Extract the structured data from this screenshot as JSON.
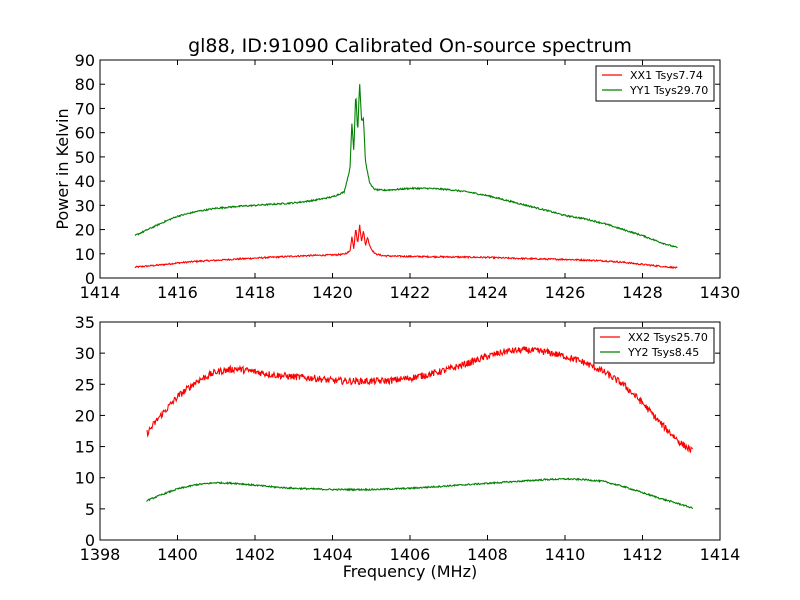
{
  "chart_data": [
    {
      "type": "line",
      "title": "gl88, ID:91090 Calibrated On-source spectrum",
      "xlabel": "",
      "ylabel": "Power in Kelvin",
      "xlim": [
        1414,
        1430
      ],
      "ylim": [
        0,
        90
      ],
      "xticks": [
        1414,
        1416,
        1418,
        1420,
        1422,
        1424,
        1426,
        1428,
        1430
      ],
      "yticks": [
        0,
        10,
        20,
        30,
        40,
        50,
        60,
        70,
        80,
        90
      ],
      "grid": false,
      "legend_position": "top-right",
      "series": [
        {
          "name": "XX1 Tsys7.74",
          "color": "#ff0000",
          "x": [
            1414.9,
            1415.5,
            1416.0,
            1416.5,
            1417.0,
            1417.5,
            1418.0,
            1418.5,
            1419.0,
            1419.5,
            1420.0,
            1420.3,
            1420.45,
            1420.5,
            1420.55,
            1420.6,
            1420.65,
            1420.7,
            1420.75,
            1420.8,
            1420.85,
            1420.9,
            1420.95,
            1421.0,
            1421.1,
            1421.3,
            1421.6,
            1422.0,
            1422.5,
            1423.0,
            1423.5,
            1424.0,
            1424.5,
            1425.0,
            1425.5,
            1426.0,
            1426.5,
            1427.0,
            1427.5,
            1428.0,
            1428.5,
            1428.9
          ],
          "y": [
            4.5,
            5.3,
            6.2,
            6.9,
            7.3,
            7.8,
            8.2,
            8.6,
            9.0,
            9.3,
            9.5,
            9.8,
            11,
            17,
            12,
            21,
            14,
            22,
            15,
            20,
            13,
            17,
            14,
            12,
            10,
            9.2,
            9.0,
            8.9,
            8.8,
            8.7,
            8.6,
            8.5,
            8.2,
            8.0,
            7.8,
            7.7,
            7.4,
            7.1,
            6.5,
            5.6,
            4.8,
            4.2
          ]
        },
        {
          "name": "YY1 Tsys29.70",
          "color": "#008000",
          "x": [
            1414.9,
            1415.3,
            1415.7,
            1416.0,
            1416.5,
            1417.0,
            1417.5,
            1418.0,
            1418.5,
            1419.0,
            1419.5,
            1420.0,
            1420.3,
            1420.45,
            1420.5,
            1420.55,
            1420.6,
            1420.65,
            1420.7,
            1420.75,
            1420.8,
            1420.85,
            1420.9,
            1420.95,
            1421.0,
            1421.1,
            1421.3,
            1421.6,
            1422.0,
            1422.5,
            1423.0,
            1423.5,
            1424.0,
            1424.5,
            1425.0,
            1425.5,
            1426.0,
            1426.5,
            1427.0,
            1427.5,
            1428.0,
            1428.5,
            1428.9
          ],
          "y": [
            17.5,
            20.5,
            23.5,
            25.5,
            27.5,
            28.8,
            29.5,
            30.0,
            30.5,
            31.0,
            32.0,
            33.5,
            35.5,
            45,
            64,
            52,
            77,
            60,
            81,
            65,
            66,
            48,
            44,
            40,
            38,
            36.5,
            36.2,
            36.5,
            37.0,
            37.0,
            36.5,
            35.5,
            34.0,
            32.0,
            30.0,
            28.0,
            25.8,
            24.5,
            22.5,
            20.0,
            17.5,
            14.5,
            12.5
          ]
        }
      ]
    },
    {
      "type": "line",
      "title": "",
      "xlabel": "Frequency (MHz)",
      "ylabel": "",
      "xlim": [
        1398,
        1414
      ],
      "ylim": [
        0,
        35
      ],
      "xticks": [
        1398,
        1400,
        1402,
        1404,
        1406,
        1408,
        1410,
        1412,
        1414
      ],
      "yticks": [
        0,
        5,
        10,
        15,
        20,
        25,
        30,
        35
      ],
      "grid": false,
      "legend_position": "top-right",
      "series": [
        {
          "name": "XX2 Tsys25.70",
          "color": "#ff0000",
          "x": [
            1399.2,
            1399.5,
            1400.0,
            1400.5,
            1401.0,
            1401.5,
            1402.0,
            1402.5,
            1403.0,
            1403.5,
            1404.0,
            1404.5,
            1405.0,
            1405.5,
            1406.0,
            1406.5,
            1407.0,
            1407.5,
            1408.0,
            1408.5,
            1409.0,
            1409.5,
            1410.0,
            1410.5,
            1411.0,
            1411.5,
            1412.0,
            1412.5,
            1413.0,
            1413.3
          ],
          "y": [
            17.0,
            19.5,
            23.0,
            25.5,
            27.0,
            27.5,
            27.0,
            26.5,
            26.2,
            26.0,
            25.6,
            25.5,
            25.5,
            25.6,
            26.0,
            26.6,
            27.4,
            28.4,
            29.5,
            30.3,
            30.5,
            30.2,
            29.5,
            28.5,
            27.0,
            25.0,
            22.0,
            18.5,
            15.5,
            14.2
          ]
        },
        {
          "name": "YY2 Tsys8.45",
          "color": "#008000",
          "x": [
            1399.2,
            1399.6,
            1400.0,
            1400.5,
            1401.0,
            1401.5,
            1402.0,
            1402.5,
            1403.0,
            1403.5,
            1404.0,
            1404.5,
            1405.0,
            1405.5,
            1406.0,
            1406.5,
            1407.0,
            1407.5,
            1408.0,
            1408.5,
            1409.0,
            1409.5,
            1410.0,
            1410.5,
            1411.0,
            1411.5,
            1412.0,
            1412.5,
            1413.0,
            1413.3
          ],
          "y": [
            6.3,
            7.3,
            8.2,
            8.9,
            9.2,
            9.1,
            8.8,
            8.5,
            8.3,
            8.2,
            8.1,
            8.1,
            8.1,
            8.2,
            8.3,
            8.5,
            8.7,
            8.9,
            9.1,
            9.3,
            9.5,
            9.7,
            9.8,
            9.7,
            9.4,
            8.6,
            7.6,
            6.6,
            5.7,
            5.1
          ]
        }
      ]
    }
  ]
}
